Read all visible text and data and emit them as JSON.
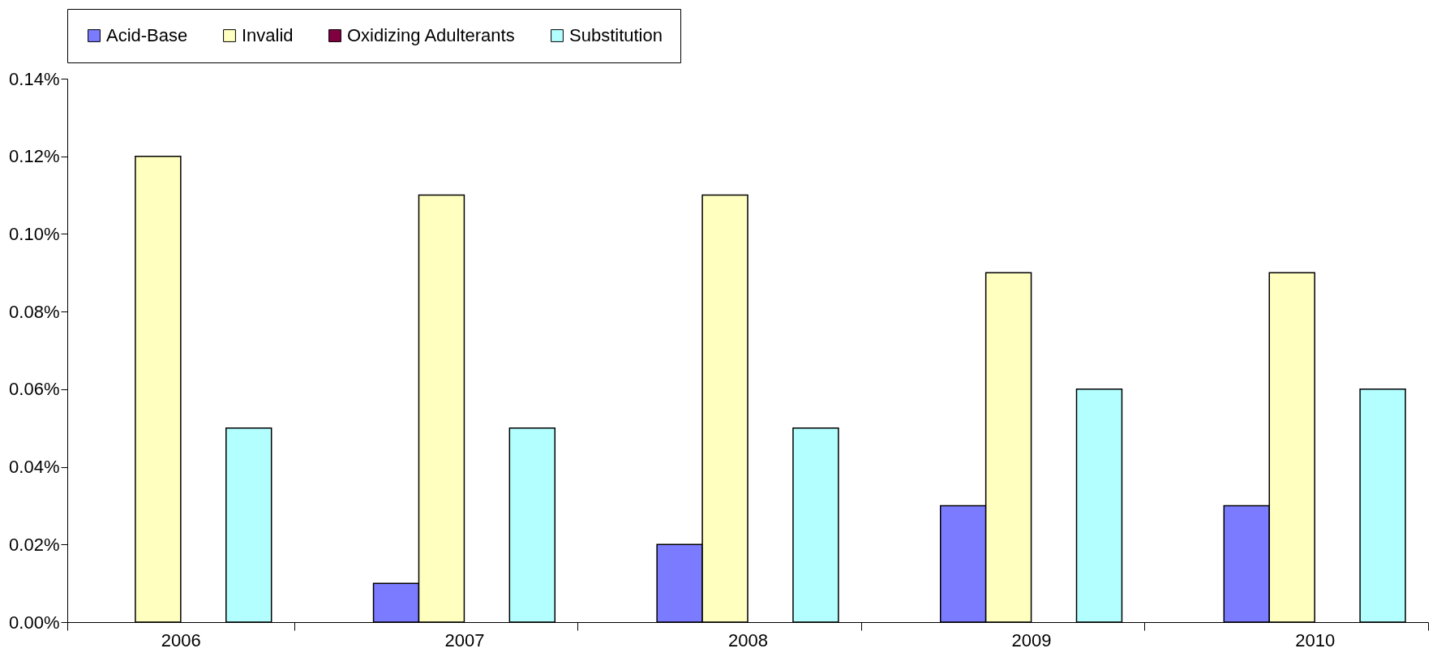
{
  "chart_data": {
    "type": "bar",
    "categories": [
      "2006",
      "2007",
      "2008",
      "2009",
      "2010"
    ],
    "series": [
      {
        "name": "Acid-Base",
        "color": "#7b7bff",
        "values": [
          0,
          0.01,
          0.02,
          0.03,
          0.03
        ]
      },
      {
        "name": "Invalid",
        "color": "#ffffc0",
        "values": [
          0.12,
          0.11,
          0.11,
          0.09,
          0.09
        ]
      },
      {
        "name": "Oxidizing Adulterants",
        "color": "#800040",
        "values": [
          0,
          0,
          0,
          0,
          0
        ]
      },
      {
        "name": "Substitution",
        "color": "#b3ffff",
        "values": [
          0.05,
          0.05,
          0.05,
          0.06,
          0.06
        ]
      }
    ],
    "ylim": [
      0,
      0.14
    ],
    "yticks": [
      {
        "value": 0,
        "label": "0.00%"
      },
      {
        "value": 0.02,
        "label": "0.02%"
      },
      {
        "value": 0.04,
        "label": "0.04%"
      },
      {
        "value": 0.06,
        "label": "0.06%"
      },
      {
        "value": 0.08,
        "label": "0.08%"
      },
      {
        "value": 0.1,
        "label": "0.10%"
      },
      {
        "value": 0.12,
        "label": "0.12%"
      },
      {
        "value": 0.14,
        "label": "0.14%"
      }
    ],
    "grid": false,
    "legend": "top"
  }
}
